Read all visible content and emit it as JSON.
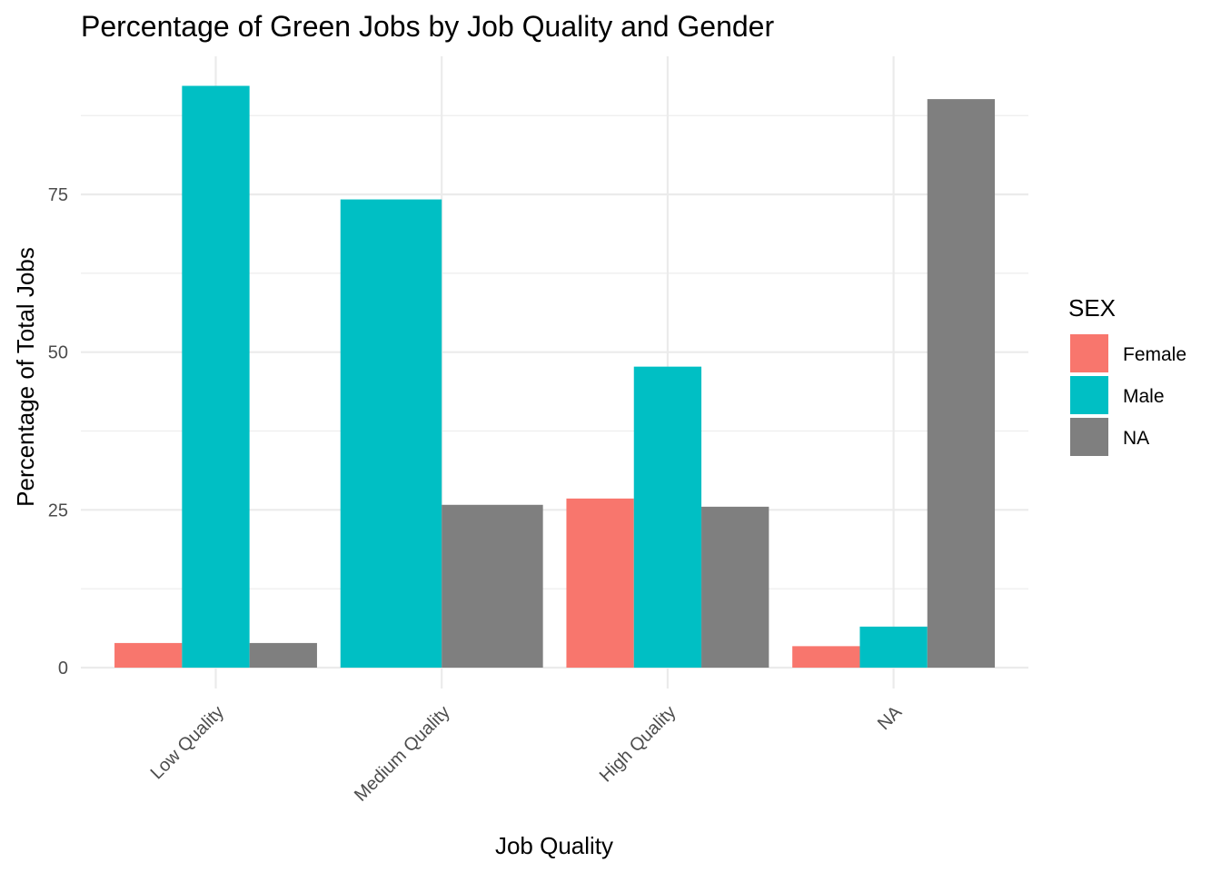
{
  "chart_data": {
    "type": "bar",
    "title": "Percentage of Green Jobs by Job Quality and Gender",
    "xlabel": "Job Quality",
    "ylabel": "Percentage of Total Jobs",
    "categories": [
      "Low Quality",
      "Medium Quality",
      "High Quality",
      "NA"
    ],
    "series": [
      {
        "name": "Female",
        "color": "#F8766D",
        "values": [
          3.9,
          null,
          26.8,
          3.4
        ]
      },
      {
        "name": "Male",
        "color": "#00BFC4",
        "values": [
          92.2,
          74.2,
          47.7,
          6.5
        ]
      },
      {
        "name": "NA",
        "color": "#7F7F7F",
        "values": [
          3.9,
          25.8,
          25.5,
          90.1
        ]
      }
    ],
    "yticks": [
      0,
      25,
      50,
      75
    ],
    "ylim": [
      0,
      97
    ],
    "grid": true,
    "legend": {
      "title": "SEX",
      "position": "right"
    }
  }
}
